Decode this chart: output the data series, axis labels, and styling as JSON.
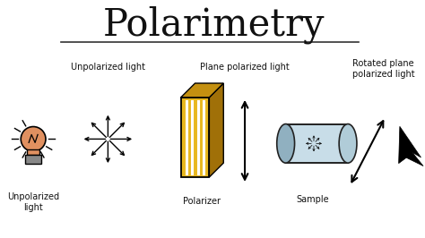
{
  "title": "Polarimetry",
  "bg_color": "#ffffff",
  "title_fontsize": 30,
  "label_fontsize": 7,
  "labels": {
    "unpolarized_top": "Unpolarized light",
    "unpolarized_bottom": "Unpolarized\nlight",
    "polarizer": "Polarizer",
    "plane_pol": "Plane polarized light",
    "sample": "Sample",
    "rotated": "Rotated plane\npolarized light"
  },
  "bulb_color": "#e09060",
  "bulb_base_color": "#888888",
  "polarizer_front": "#e8b820",
  "polarizer_top": "#c49010",
  "polarizer_side": "#a07008",
  "sample_body": "#c8dde8",
  "sample_cap_left": "#90b0c0",
  "sample_cap_right": "#b0ccd8",
  "arrow_color": "#111111",
  "text_color": "#111111",
  "underline_color": "#333333"
}
